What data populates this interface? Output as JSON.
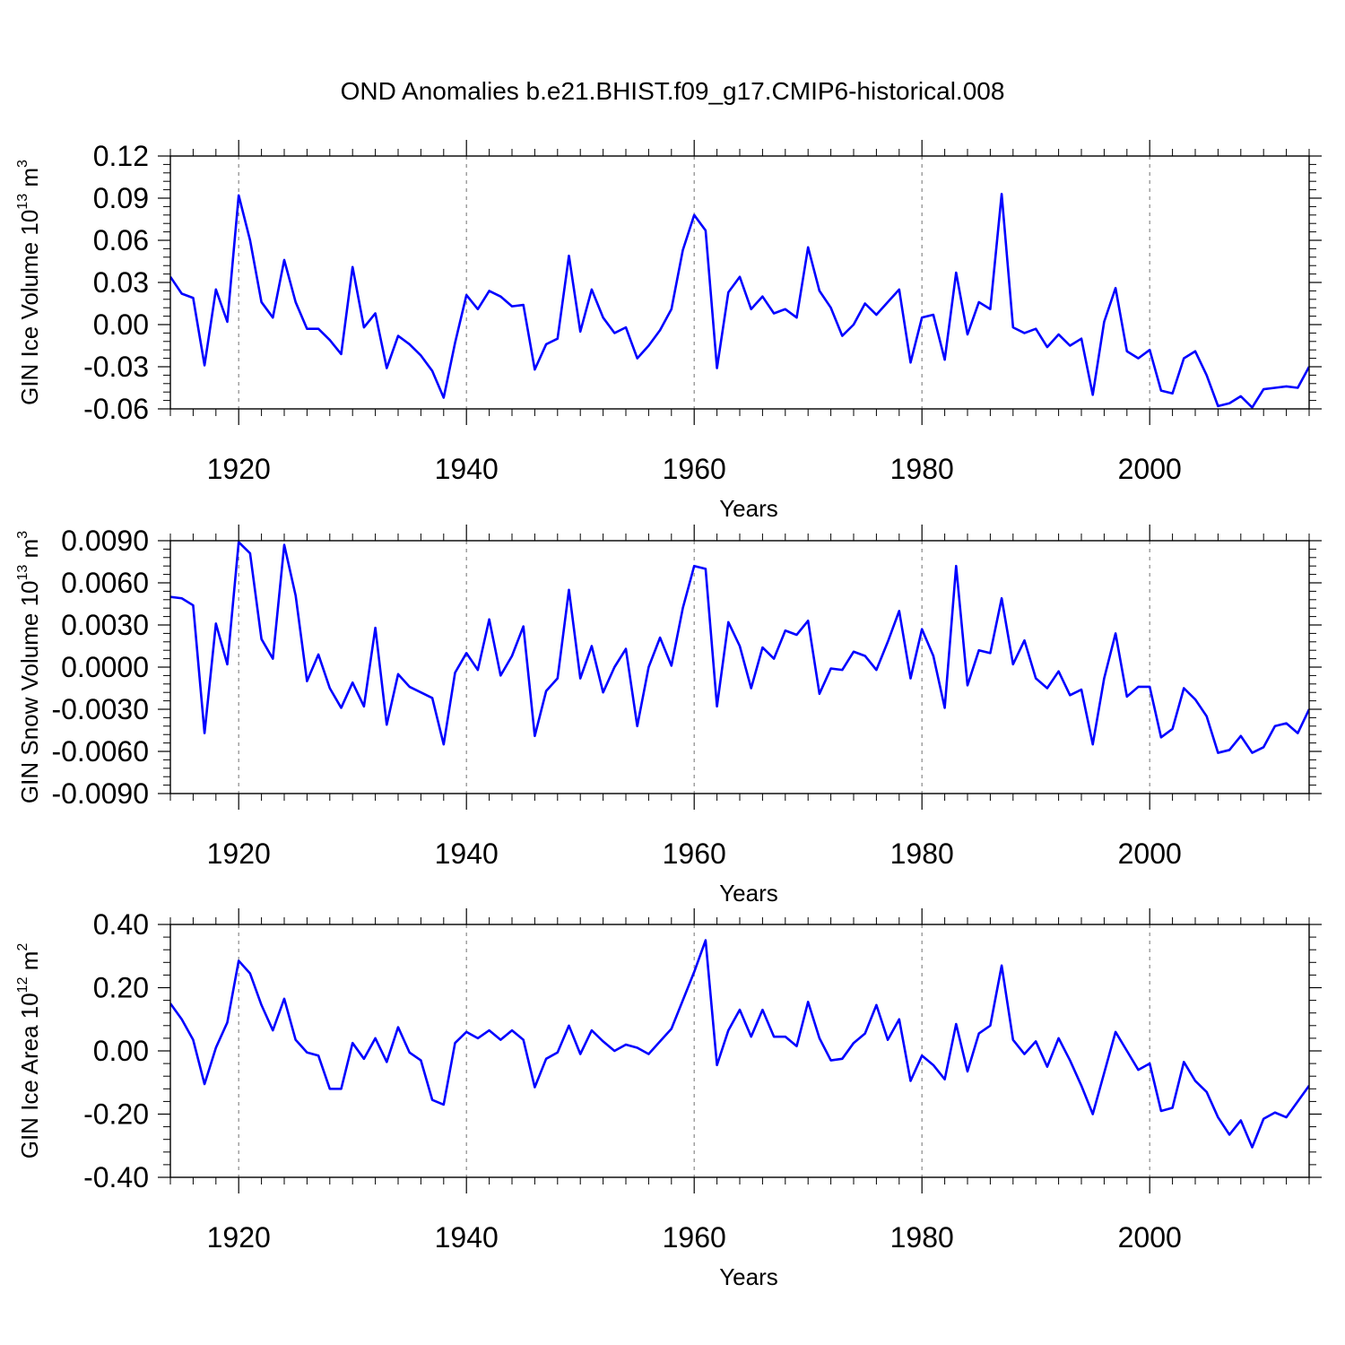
{
  "title": "OND Anomalies b.e21.BHIST.f09_g17.CMIP6-historical.008",
  "chart_data": [
    {
      "type": "line",
      "ylabel_parts": [
        "GIN Ice Volume 10",
        "13",
        " m",
        "3"
      ],
      "xlabel": "Years",
      "xlim": [
        1914,
        2014
      ],
      "ylim": [
        -0.06,
        0.12
      ],
      "yticks": [
        -0.06,
        -0.03,
        0.0,
        0.03,
        0.06,
        0.09,
        0.12
      ],
      "ytick_labels": [
        "-0.06",
        "-0.03",
        "0.00",
        "0.03",
        "0.06",
        "0.09",
        "0.12"
      ],
      "xticks": [
        1920,
        1940,
        1960,
        1980,
        2000
      ],
      "xtick_labels": [
        "1920",
        "1940",
        "1960",
        "1980",
        "2000"
      ],
      "grid_vertical": [
        1920,
        1940,
        1960,
        1980,
        2000
      ],
      "line_color": "#0000ff",
      "x_start": 1914,
      "values": [
        0.034,
        0.022,
        0.019,
        -0.029,
        0.025,
        0.002,
        0.092,
        0.06,
        0.016,
        0.005,
        0.046,
        0.016,
        -0.003,
        -0.003,
        -0.011,
        -0.021,
        0.041,
        -0.002,
        0.008,
        -0.031,
        -0.008,
        -0.014,
        -0.022,
        -0.033,
        -0.052,
        -0.013,
        0.021,
        0.011,
        0.024,
        0.02,
        0.013,
        0.014,
        -0.032,
        -0.014,
        -0.01,
        0.049,
        -0.005,
        0.025,
        0.005,
        -0.006,
        -0.002,
        -0.024,
        -0.015,
        -0.004,
        0.011,
        0.053,
        0.078,
        0.067,
        -0.031,
        0.023,
        0.034,
        0.011,
        0.02,
        0.008,
        0.011,
        0.005,
        0.055,
        0.024,
        0.012,
        -0.008,
        0.0,
        0.015,
        0.007,
        0.016,
        0.025,
        -0.027,
        0.005,
        0.007,
        -0.025,
        0.037,
        -0.007,
        0.016,
        0.011,
        0.093,
        -0.002,
        -0.006,
        -0.003,
        -0.016,
        -0.007,
        -0.015,
        -0.01,
        -0.05,
        0.002,
        0.026,
        -0.019,
        -0.024,
        -0.018,
        -0.047,
        -0.049,
        -0.024,
        -0.019,
        -0.036,
        -0.058,
        -0.056,
        -0.051,
        -0.059,
        -0.046,
        -0.045,
        -0.044,
        -0.045,
        -0.03
      ]
    },
    {
      "type": "line",
      "ylabel_parts": [
        "GIN Snow Volume 10",
        "13",
        " m",
        "3"
      ],
      "xlabel": "Years",
      "xlim": [
        1914,
        2014
      ],
      "ylim": [
        -0.009,
        0.009
      ],
      "yticks": [
        -0.009,
        -0.006,
        -0.003,
        0.0,
        0.003,
        0.006,
        0.009
      ],
      "ytick_labels": [
        "-0.0090",
        "-0.0060",
        "-0.0030",
        "0.0000",
        "0.0030",
        "0.0060",
        "0.0090"
      ],
      "xticks": [
        1920,
        1940,
        1960,
        1980,
        2000
      ],
      "xtick_labels": [
        "1920",
        "1940",
        "1960",
        "1980",
        "2000"
      ],
      "grid_vertical": [
        1920,
        1940,
        1960,
        1980,
        2000
      ],
      "line_color": "#0000ff",
      "x_start": 1914,
      "values": [
        0.005,
        0.0049,
        0.0044,
        -0.0047,
        0.0031,
        0.0002,
        0.0089,
        0.0081,
        0.002,
        0.0006,
        0.0087,
        0.0051,
        -0.001,
        0.0009,
        -0.0015,
        -0.0029,
        -0.0011,
        -0.0028,
        0.0028,
        -0.0041,
        -0.0005,
        -0.0014,
        -0.0018,
        -0.0022,
        -0.0055,
        -0.0004,
        0.001,
        -0.0002,
        0.0034,
        -0.0006,
        0.0008,
        0.0029,
        -0.0049,
        -0.0017,
        -0.0008,
        0.0055,
        -0.0008,
        0.0015,
        -0.0018,
        0.0,
        0.0013,
        -0.0042,
        0.0,
        0.0021,
        0.0001,
        0.0042,
        0.0072,
        0.007,
        -0.0028,
        0.0032,
        0.0015,
        -0.0015,
        0.0014,
        0.0006,
        0.0026,
        0.0023,
        0.0033,
        -0.0019,
        -0.0001,
        -0.0002,
        0.0011,
        0.0008,
        -0.0002,
        0.0018,
        0.004,
        -0.0008,
        0.0027,
        0.0008,
        -0.0029,
        0.0072,
        -0.0013,
        0.0012,
        0.001,
        0.0049,
        0.0002,
        0.0019,
        -0.0008,
        -0.0015,
        -0.0003,
        -0.002,
        -0.0016,
        -0.0055,
        -0.0008,
        0.0024,
        -0.0021,
        -0.0014,
        -0.0014,
        -0.005,
        -0.0044,
        -0.0015,
        -0.0023,
        -0.0035,
        -0.0061,
        -0.0059,
        -0.0049,
        -0.0061,
        -0.0057,
        -0.0042,
        -0.004,
        -0.0047,
        -0.003
      ]
    },
    {
      "type": "line",
      "ylabel_parts": [
        "GIN Ice Area 10",
        "12",
        " m",
        "2"
      ],
      "xlabel": "Years",
      "xlim": [
        1914,
        2014
      ],
      "ylim": [
        -0.4,
        0.4
      ],
      "yticks": [
        -0.4,
        -0.2,
        0.0,
        0.2,
        0.4
      ],
      "ytick_labels": [
        "-0.40",
        "-0.20",
        "0.00",
        "0.20",
        "0.40"
      ],
      "xticks": [
        1920,
        1940,
        1960,
        1980,
        2000
      ],
      "xtick_labels": [
        "1920",
        "1940",
        "1960",
        "1980",
        "2000"
      ],
      "grid_vertical": [
        1920,
        1940,
        1960,
        1980,
        2000
      ],
      "line_color": "#0000ff",
      "x_start": 1914,
      "values": [
        0.15,
        0.1,
        0.035,
        -0.105,
        0.01,
        0.09,
        0.285,
        0.245,
        0.145,
        0.065,
        0.165,
        0.035,
        -0.005,
        -0.015,
        -0.12,
        -0.12,
        0.025,
        -0.025,
        0.04,
        -0.035,
        0.075,
        -0.005,
        -0.03,
        -0.155,
        -0.17,
        0.025,
        0.06,
        0.04,
        0.065,
        0.035,
        0.065,
        0.035,
        -0.115,
        -0.025,
        -0.005,
        0.08,
        -0.01,
        0.065,
        0.03,
        0.0,
        0.02,
        0.01,
        -0.01,
        0.03,
        0.07,
        0.16,
        0.25,
        0.35,
        -0.045,
        0.065,
        0.13,
        0.045,
        0.13,
        0.045,
        0.045,
        0.015,
        0.155,
        0.04,
        -0.03,
        -0.025,
        0.025,
        0.055,
        0.145,
        0.035,
        0.1,
        -0.095,
        -0.015,
        -0.045,
        -0.09,
        0.085,
        -0.065,
        0.055,
        0.08,
        0.27,
        0.035,
        -0.01,
        0.03,
        -0.05,
        0.04,
        -0.03,
        -0.11,
        -0.2,
        -0.07,
        0.06,
        0.0,
        -0.06,
        -0.04,
        -0.19,
        -0.18,
        -0.035,
        -0.095,
        -0.13,
        -0.21,
        -0.265,
        -0.22,
        -0.305,
        -0.215,
        -0.195,
        -0.21,
        -0.16,
        -0.11
      ]
    }
  ]
}
